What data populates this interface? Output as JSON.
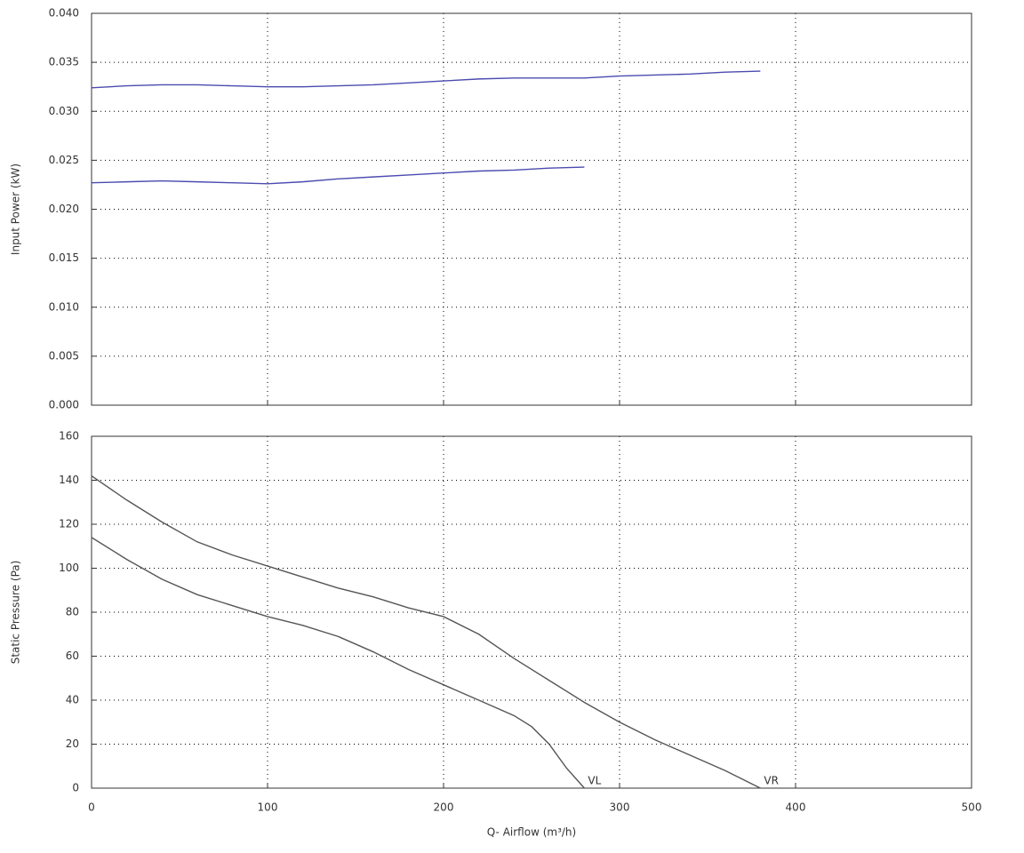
{
  "chart_data": [
    {
      "type": "line",
      "ylabel": "Input Power (kW)",
      "xlim": [
        0,
        500
      ],
      "xticks": [
        0,
        100,
        200,
        300,
        400,
        500
      ],
      "ylim": [
        0,
        0.04
      ],
      "yticks": [
        {
          "value": 0,
          "label": "0.000"
        },
        0.005,
        {
          "value": 0.01,
          "label": "0.010"
        },
        0.015,
        {
          "value": 0.02,
          "label": "0.020"
        },
        0.025,
        {
          "value": 0.03,
          "label": "0.030"
        },
        0.035,
        {
          "value": 0.04,
          "label": "0.040"
        }
      ],
      "grid": true,
      "series": [
        {
          "color": "#4b4bb0",
          "x": [
            0,
            20,
            40,
            60,
            80,
            100,
            120,
            140,
            160,
            180,
            200,
            220,
            240,
            260,
            280,
            300,
            320,
            340,
            360,
            380
          ],
          "values": [
            0.0324,
            0.0326,
            0.0327,
            0.0327,
            0.0326,
            0.0325,
            0.0325,
            0.0326,
            0.0327,
            0.0329,
            0.0331,
            0.0333,
            0.0334,
            0.0334,
            0.0334,
            0.0336,
            0.0337,
            0.0338,
            0.034,
            0.0341
          ]
        },
        {
          "color": "#4b4bb0",
          "x": [
            0,
            20,
            40,
            60,
            80,
            100,
            120,
            140,
            160,
            180,
            200,
            220,
            240,
            260,
            280
          ],
          "values": [
            0.0227,
            0.0228,
            0.0229,
            0.0228,
            0.0227,
            0.0226,
            0.0228,
            0.0231,
            0.0233,
            0.0235,
            0.0237,
            0.0239,
            0.024,
            0.0242,
            0.0243
          ]
        }
      ]
    },
    {
      "type": "line",
      "ylabel": "Static Pressure (Pa)",
      "xlabel": "Q- Airflow (m³/h)",
      "xlim": [
        0,
        500
      ],
      "xticks": [
        0,
        100,
        200,
        300,
        400,
        500
      ],
      "ylim": [
        0,
        160
      ],
      "yticks": [
        0,
        20,
        40,
        60,
        80,
        100,
        120,
        140,
        160
      ],
      "grid": true,
      "series": [
        {
          "name": "VR",
          "color": "#555555",
          "x": [
            0,
            20,
            40,
            60,
            80,
            100,
            120,
            140,
            160,
            180,
            200,
            220,
            240,
            260,
            280,
            300,
            320,
            340,
            360,
            380
          ],
          "values": [
            142,
            131,
            121,
            112,
            106,
            101,
            96,
            91,
            87,
            82,
            78,
            70,
            59,
            49,
            39,
            30,
            22,
            15,
            8,
            0
          ]
        },
        {
          "name": "VL",
          "color": "#555555",
          "x": [
            0,
            20,
            40,
            60,
            80,
            100,
            120,
            140,
            160,
            180,
            200,
            220,
            240,
            250,
            260,
            270,
            280
          ],
          "values": [
            114,
            104,
            95,
            88,
            83,
            78,
            74,
            69,
            62,
            54,
            47,
            40,
            33,
            28,
            20,
            9,
            0
          ]
        }
      ]
    }
  ]
}
